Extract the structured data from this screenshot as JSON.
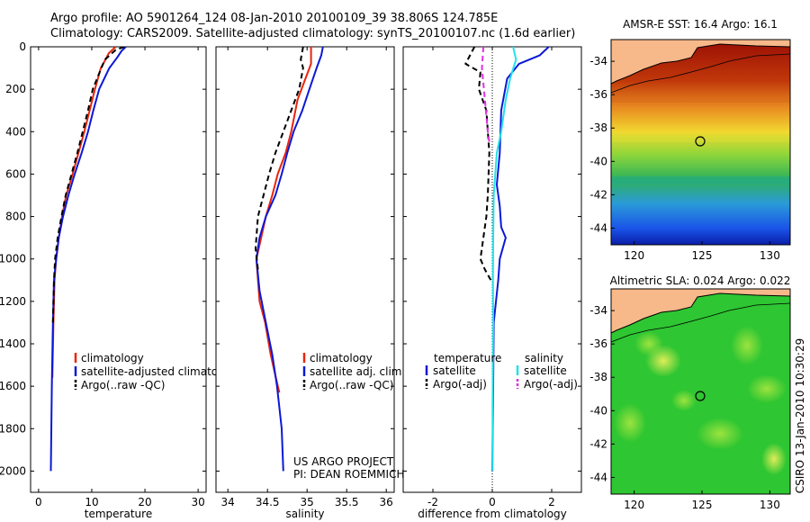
{
  "header": {
    "line1": "Argo profile: AO 5901264_124 08-Jan-2010 20100109_39 38.806S 124.785E",
    "line2": "Climatology: CARS2009. Satellite-adjusted climatology: synTS_20100107.nc (1.6d earlier)"
  },
  "colors": {
    "climatology": "#e8250d",
    "satellite": "#0b18d6",
    "argo": "#000000",
    "sat_diff_salinity": "#22e1e8",
    "argo_diff_salinity": "#e030e0"
  },
  "chart_data": [
    {
      "type": "line",
      "xlabel": "temperature",
      "ylabel": "",
      "xlim": [
        -1.5,
        31.5
      ],
      "ylim": [
        2100,
        0
      ],
      "xticks": [
        "0",
        "10",
        "20",
        "30"
      ],
      "yticks": [
        "0",
        "200",
        "400",
        "600",
        "800",
        "1000",
        "1200",
        "1400",
        "1600",
        "1800",
        "2000"
      ],
      "legend": [
        "climatology",
        "satellite-adjusted climatology",
        "Argo(..raw -QC)"
      ],
      "series": [
        {
          "name": "climatology",
          "color": "#e8250d",
          "dash": false,
          "x": [
            14.5,
            13.2,
            12.6,
            11.7,
            10.6,
            9.6,
            8.6,
            7.5,
            6.4,
            5.2,
            4.4,
            3.8,
            3.3,
            3.0,
            2.8,
            2.6
          ],
          "y": [
            0,
            30,
            60,
            100,
            200,
            300,
            400,
            500,
            600,
            700,
            800,
            900,
            1000,
            1100,
            1300,
            1560
          ]
        },
        {
          "name": "satellite-adjusted climatology",
          "color": "#0b18d6",
          "dash": false,
          "x": [
            16.4,
            15.6,
            14.8,
            13.3,
            11.4,
            10.3,
            9.3,
            8.1,
            6.8,
            5.6,
            4.6,
            3.8,
            3.3,
            2.9,
            2.7,
            2.5,
            2.3
          ],
          "y": [
            0,
            20,
            50,
            100,
            200,
            300,
            400,
            500,
            600,
            700,
            800,
            900,
            1000,
            1100,
            1300,
            1600,
            2000
          ]
        },
        {
          "name": "Argo(..raw -QC)",
          "color": "#000000",
          "dash": true,
          "x": [
            16.1,
            14.5,
            12.5,
            11.8,
            10.2,
            9.3,
            8.3,
            7.3,
            6.2,
            5.1,
            4.3,
            3.6,
            3.1,
            2.9,
            2.7
          ],
          "y": [
            0,
            15,
            60,
            100,
            200,
            300,
            400,
            500,
            600,
            700,
            800,
            900,
            1000,
            1100,
            1300
          ]
        }
      ]
    },
    {
      "type": "line",
      "xlabel": "salinity",
      "ylabel": "",
      "xlim": [
        33.85,
        36.1
      ],
      "ylim": [
        2100,
        0
      ],
      "xticks": [
        "34",
        "34.5",
        "35",
        "35.5",
        "36"
      ],
      "legend": [
        "climatology",
        "satellite adj. clim.",
        "Argo(..raw -QC)"
      ],
      "annotation_lines": [
        "US ARGO PROJECT",
        "PI: DEAN ROEMMICH"
      ],
      "series": [
        {
          "name": "climatology",
          "color": "#e8250d",
          "dash": false,
          "x": [
            35.05,
            35.05,
            34.98,
            34.88,
            34.8,
            34.73,
            34.63,
            34.56,
            34.48,
            34.42,
            34.36,
            34.4,
            34.47,
            34.54,
            34.6,
            34.65
          ],
          "y": [
            0,
            80,
            150,
            250,
            400,
            500,
            600,
            700,
            800,
            900,
            1000,
            1200,
            1300,
            1450,
            1550,
            1630
          ]
        },
        {
          "name": "satellite adj. clim.",
          "color": "#0b18d6",
          "dash": false,
          "x": [
            35.2,
            35.18,
            35.12,
            35.03,
            34.94,
            34.83,
            34.75,
            34.68,
            34.6,
            34.48,
            34.4,
            34.36,
            34.4,
            34.48,
            34.56,
            34.62,
            34.68,
            34.7
          ],
          "y": [
            0,
            40,
            100,
            200,
            300,
            400,
            500,
            600,
            700,
            800,
            900,
            1000,
            1150,
            1300,
            1450,
            1600,
            1800,
            2000
          ]
        },
        {
          "name": "Argo(..raw -QC)",
          "color": "#000000",
          "dash": true,
          "x": [
            34.95,
            34.92,
            34.95,
            34.9,
            34.8,
            34.7,
            34.6,
            34.52,
            34.45,
            34.38,
            34.35,
            34.38
          ],
          "y": [
            0,
            60,
            100,
            200,
            300,
            400,
            500,
            600,
            700,
            800,
            950,
            1050
          ]
        }
      ]
    },
    {
      "type": "line",
      "xlabel": "difference from climatology",
      "ylabel": "",
      "xlim": [
        -3.0,
        3.0
      ],
      "ylim": [
        2100,
        0
      ],
      "xticks": [
        "-2",
        "0",
        "2"
      ],
      "legend_temperature": {
        "title": "temperature",
        "items": [
          "satellite",
          "Argo(-adj)"
        ]
      },
      "legend_salinity": {
        "title": "salinity",
        "items": [
          "satellite",
          "Argo(-adj)"
        ]
      },
      "series": [
        {
          "name": "satellite",
          "group": "temperature",
          "color": "#0b18d6",
          "dash": false,
          "x": [
            1.9,
            1.6,
            0.9,
            0.5,
            0.3,
            0.25,
            0.15,
            0.25,
            0.3,
            0.45,
            0.25,
            0.2,
            0.05,
            0.03,
            0.0
          ],
          "y": [
            0,
            40,
            80,
            150,
            300,
            500,
            650,
            750,
            850,
            900,
            1000,
            1100,
            1300,
            1600,
            2000
          ]
        },
        {
          "name": "Argo(-adj)",
          "group": "temperature",
          "color": "#000000",
          "dash": true,
          "x": [
            -0.6,
            -0.9,
            -0.4,
            -0.45,
            -0.2,
            -0.1,
            -0.15,
            -0.2,
            -0.3,
            -0.4,
            -0.25,
            -0.05
          ],
          "y": [
            0,
            80,
            120,
            200,
            300,
            500,
            700,
            800,
            900,
            1000,
            1050,
            1100
          ]
        },
        {
          "name": "satellite",
          "group": "salinity",
          "color": "#22e1e8",
          "dash": false,
          "x": [
            0.7,
            0.8,
            0.6,
            0.45,
            0.3,
            0.15,
            0.1,
            0.05,
            0.03,
            0.02,
            0.03,
            0.02,
            0.01,
            0.01
          ],
          "y": [
            0,
            60,
            150,
            250,
            400,
            500,
            600,
            700,
            900,
            1100,
            1300,
            1500,
            1700,
            2000
          ]
        },
        {
          "name": "Argo(-adj)",
          "group": "salinity",
          "color": "#e030e0",
          "dash": true,
          "x": [
            -0.3,
            -0.35,
            -0.25,
            -0.15,
            -0.1
          ],
          "y": [
            0,
            100,
            250,
            400,
            450
          ]
        }
      ]
    },
    {
      "type": "heatmap",
      "title": "AMSR-E SST: 16.4 Argo: 16.1",
      "xticks": [
        "120",
        "125",
        "130"
      ],
      "yticks": [
        "-34",
        "-36",
        "-38",
        "-40",
        "-42",
        "-44"
      ],
      "xlim": [
        118.3,
        131.5
      ],
      "ylim": [
        -45.0,
        -32.7
      ],
      "marker": {
        "lon": 124.785,
        "lat": -38.806
      }
    },
    {
      "type": "heatmap",
      "title": "Altimetric SLA: 0.024 Argo: 0.022",
      "xticks": [
        "120",
        "125",
        "130"
      ],
      "yticks": [
        "-34",
        "-36",
        "-38",
        "-40",
        "-42",
        "-44"
      ],
      "xlim": [
        118.3,
        131.5
      ],
      "ylim": [
        -45.0,
        -32.7
      ],
      "marker": {
        "lon": 124.785,
        "lat": -38.806
      }
    }
  ],
  "side_label": "CSIRO 13-Jan-2010 10:30:29"
}
